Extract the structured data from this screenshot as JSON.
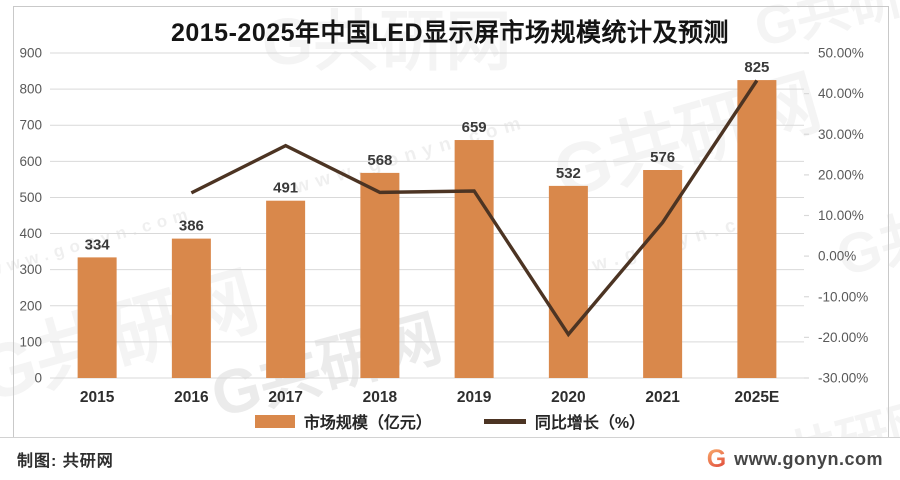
{
  "title": "2015-2025年中国LED显示屏市场规模统计及预测",
  "chart_data": {
    "type": "bar+line combo",
    "categories": [
      "2015",
      "2016",
      "2017",
      "2018",
      "2019",
      "2020",
      "2021",
      "2025E"
    ],
    "series": [
      {
        "name": "市场规模（亿元）",
        "type": "bar",
        "axis": "left",
        "values": [
          334,
          386,
          491,
          568,
          659,
          532,
          576,
          825
        ]
      },
      {
        "name": "同比增长（%）",
        "type": "line",
        "axis": "right",
        "values": [
          null,
          15.57,
          27.2,
          15.68,
          16.02,
          -19.27,
          8.27,
          43.23
        ]
      }
    ],
    "bar_value_labels": [
      "334",
      "386",
      "491",
      "568",
      "659",
      "532",
      "576",
      "825"
    ],
    "left_axis": {
      "min": 0,
      "max": 900,
      "ticks_top_to_bottom": [
        "900",
        "800",
        "700",
        "600",
        "500",
        "400",
        "300",
        "200",
        "100",
        "0"
      ]
    },
    "right_axis": {
      "min": -30,
      "max": 50,
      "ticks_top_to_bottom": [
        "50.00%",
        "40.00%",
        "30.00%",
        "20.00%",
        "10.00%",
        "0.00%",
        "-10.00%",
        "-20.00%",
        "-30.00%"
      ]
    },
    "grid": true,
    "legend_position": "bottom",
    "colors": {
      "bar": "#D9884B",
      "line": "#4C3423",
      "grid": "#D9D9D9",
      "axis_text": "#595959",
      "value_label": "#3A3A3A",
      "category_label": "#2E2E2E"
    }
  },
  "legend": {
    "items": [
      {
        "label": "市场规模（亿元）",
        "swatch": "bar"
      },
      {
        "label": "同比增长（%）",
        "swatch": "line"
      }
    ]
  },
  "footer": {
    "credit": "制图: 共研网",
    "logo_letter": "G",
    "site": "www.gonyn.com"
  },
  "watermark": {
    "logo_text": "G共研网",
    "url_text": "www.gonyn.com"
  }
}
